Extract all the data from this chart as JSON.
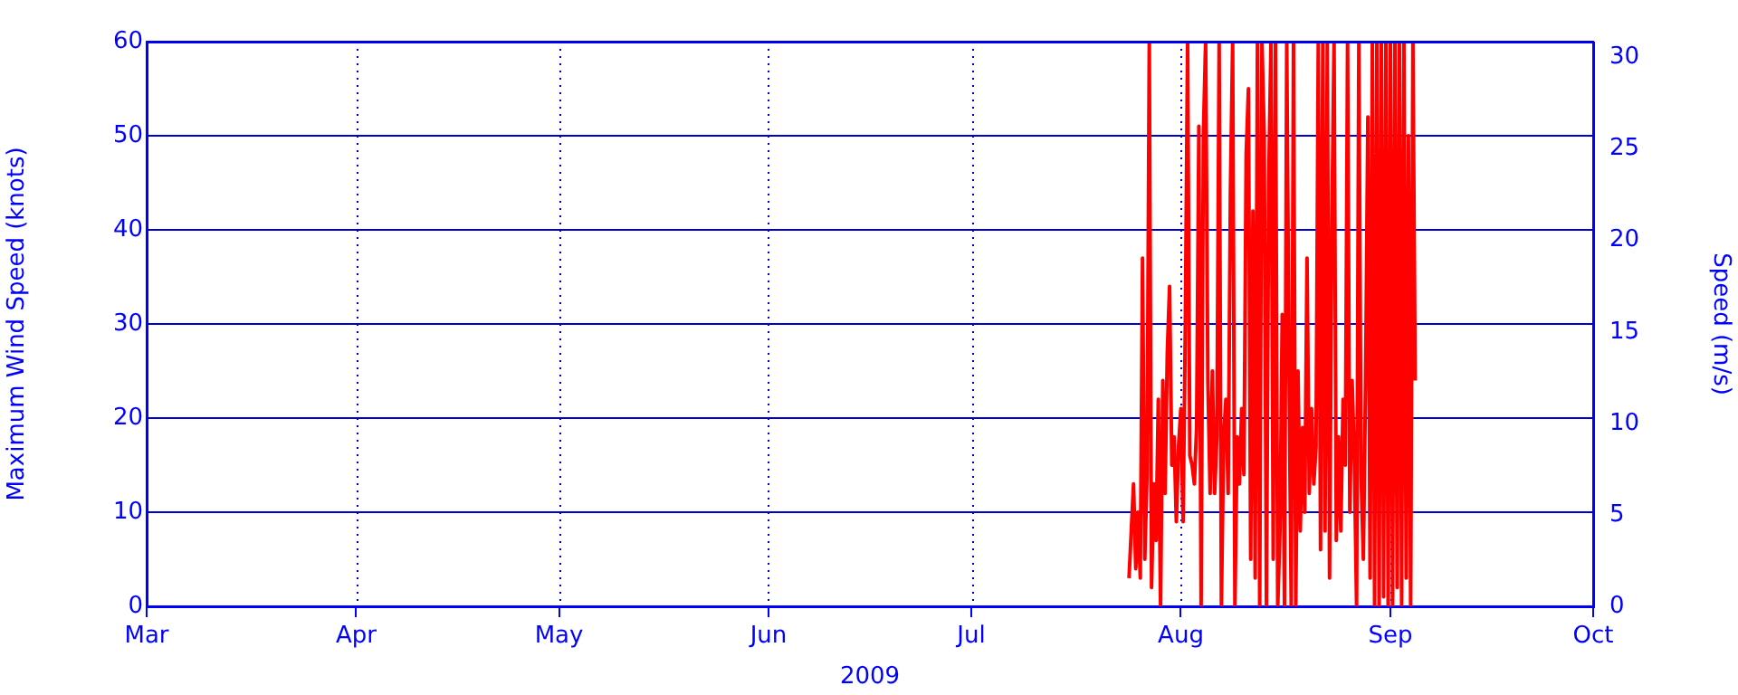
{
  "chart_data": {
    "type": "line",
    "xlabel": "2009",
    "ylabel": "Maximum Wind Speed (knots)",
    "y2label": "Speed (m/s)",
    "xlim": [
      "2009-03-01",
      "2009-10-01"
    ],
    "xticks": [
      {
        "value": "2009-03-01",
        "label": "Mar"
      },
      {
        "value": "2009-04-01",
        "label": "Apr"
      },
      {
        "value": "2009-05-01",
        "label": "May"
      },
      {
        "value": "2009-06-01",
        "label": "Jun"
      },
      {
        "value": "2009-07-01",
        "label": "Jul"
      },
      {
        "value": "2009-08-01",
        "label": "Aug"
      },
      {
        "value": "2009-09-01",
        "label": "Sep"
      },
      {
        "value": "2009-10-01",
        "label": "Oct"
      }
    ],
    "ylim": [
      0,
      60
    ],
    "yticks": [
      0,
      10,
      20,
      30,
      40,
      50,
      60
    ],
    "y2lim": [
      0,
      30.87
    ],
    "y2ticks": [
      0,
      5,
      10,
      15,
      20,
      25,
      30
    ],
    "grid": true,
    "legend": false,
    "marker": "none",
    "line_style": "solid",
    "x": [
      "2009-07-24T08:00",
      "2009-07-24T16:00",
      "2009-07-25T00:00",
      "2009-07-25T08:00",
      "2009-07-25T16:00",
      "2009-07-26T00:00",
      "2009-07-26T08:00",
      "2009-07-26T16:00",
      "2009-07-27T00:00",
      "2009-07-27T08:00",
      "2009-07-27T16:00",
      "2009-07-28T00:00",
      "2009-07-28T08:00",
      "2009-07-28T16:00",
      "2009-07-29T00:00",
      "2009-07-29T08:00",
      "2009-07-29T16:00",
      "2009-07-30T00:00",
      "2009-07-30T08:00",
      "2009-07-30T16:00",
      "2009-07-31T00:00",
      "2009-07-31T08:00",
      "2009-07-31T16:00",
      "2009-08-01T00:00",
      "2009-08-01T08:00",
      "2009-08-01T16:00",
      "2009-08-02T00:00",
      "2009-08-02T08:00",
      "2009-08-02T16:00",
      "2009-08-03T00:00",
      "2009-08-03T08:00",
      "2009-08-03T16:00",
      "2009-08-04T00:00",
      "2009-08-04T08:00",
      "2009-08-04T16:00",
      "2009-08-05T00:00",
      "2009-08-05T08:00",
      "2009-08-05T16:00",
      "2009-08-06T00:00",
      "2009-08-06T08:00",
      "2009-08-06T16:00",
      "2009-08-07T00:00",
      "2009-08-07T08:00",
      "2009-08-07T16:00",
      "2009-08-08T00:00",
      "2009-08-08T08:00",
      "2009-08-08T16:00",
      "2009-08-09T00:00",
      "2009-08-09T08:00",
      "2009-08-09T16:00",
      "2009-08-10T00:00",
      "2009-08-10T08:00",
      "2009-08-10T16:00",
      "2009-08-11T00:00",
      "2009-08-11T08:00",
      "2009-08-11T16:00",
      "2009-08-12T00:00",
      "2009-08-12T08:00",
      "2009-08-12T16:00",
      "2009-08-13T00:00",
      "2009-08-13T08:00",
      "2009-08-13T16:00",
      "2009-08-14T00:00",
      "2009-08-14T08:00",
      "2009-08-14T16:00",
      "2009-08-15T00:00",
      "2009-08-15T08:00",
      "2009-08-15T16:00",
      "2009-08-16T00:00",
      "2009-08-16T08:00",
      "2009-08-16T16:00",
      "2009-08-17T00:00",
      "2009-08-17T08:00",
      "2009-08-17T16:00",
      "2009-08-18T00:00",
      "2009-08-18T08:00",
      "2009-08-18T16:00",
      "2009-08-19T00:00",
      "2009-08-19T08:00",
      "2009-08-19T16:00",
      "2009-08-20T00:00",
      "2009-08-20T08:00",
      "2009-08-20T16:00",
      "2009-08-21T00:00",
      "2009-08-21T08:00",
      "2009-08-21T16:00",
      "2009-08-22T00:00",
      "2009-08-22T08:00",
      "2009-08-22T16:00",
      "2009-08-23T00:00",
      "2009-08-23T08:00",
      "2009-08-23T16:00",
      "2009-08-24T00:00",
      "2009-08-24T08:00",
      "2009-08-24T16:00",
      "2009-08-25T00:00",
      "2009-08-25T08:00",
      "2009-08-25T16:00",
      "2009-08-26T00:00",
      "2009-08-26T08:00",
      "2009-08-26T16:00",
      "2009-08-27T00:00",
      "2009-08-27T08:00",
      "2009-08-27T16:00",
      "2009-08-28T00:00",
      "2009-08-28T08:00",
      "2009-08-28T16:00",
      "2009-08-29T00:00",
      "2009-08-29T08:00",
      "2009-08-29T16:00",
      "2009-08-30T00:00",
      "2009-08-30T08:00",
      "2009-08-30T16:00",
      "2009-08-31T00:00",
      "2009-08-31T08:00",
      "2009-08-31T16:00",
      "2009-09-01T00:00",
      "2009-09-01T08:00",
      "2009-09-01T16:00",
      "2009-09-02T00:00",
      "2009-09-02T08:00",
      "2009-09-02T16:00",
      "2009-09-03T00:00",
      "2009-09-03T08:00",
      "2009-09-03T16:00",
      "2009-09-04T00:00",
      "2009-09-04T08:00",
      "2009-09-04T16:00"
    ],
    "series": [
      {
        "color": "#ff0000",
        "values": [
          3,
          8,
          13,
          4,
          10,
          3,
          37,
          5,
          14,
          60,
          2,
          13,
          7,
          22,
          0,
          24,
          12,
          27,
          34,
          15,
          18,
          9,
          17,
          21,
          9,
          30,
          60,
          16,
          15,
          13,
          19,
          51,
          0,
          50,
          60,
          24,
          12,
          25,
          12,
          18,
          60,
          0,
          18,
          22,
          12,
          44,
          60,
          0,
          18,
          13,
          21,
          14,
          48,
          55,
          5,
          42,
          3,
          60,
          0,
          60,
          50,
          0,
          45,
          60,
          5,
          60,
          0,
          8,
          31,
          0,
          60,
          25,
          0,
          60,
          0,
          25,
          8,
          19,
          10,
          37,
          12,
          21,
          13,
          17,
          60,
          6,
          60,
          8,
          60,
          3,
          40,
          60,
          7,
          18,
          8,
          22,
          15,
          60,
          10,
          24,
          16,
          0,
          60,
          14,
          5,
          24,
          52,
          3,
          60,
          0,
          60,
          0,
          60,
          1,
          60,
          0,
          60,
          0,
          60,
          2,
          60,
          0,
          60,
          3,
          50,
          0,
          60,
          24
        ]
      }
    ]
  }
}
